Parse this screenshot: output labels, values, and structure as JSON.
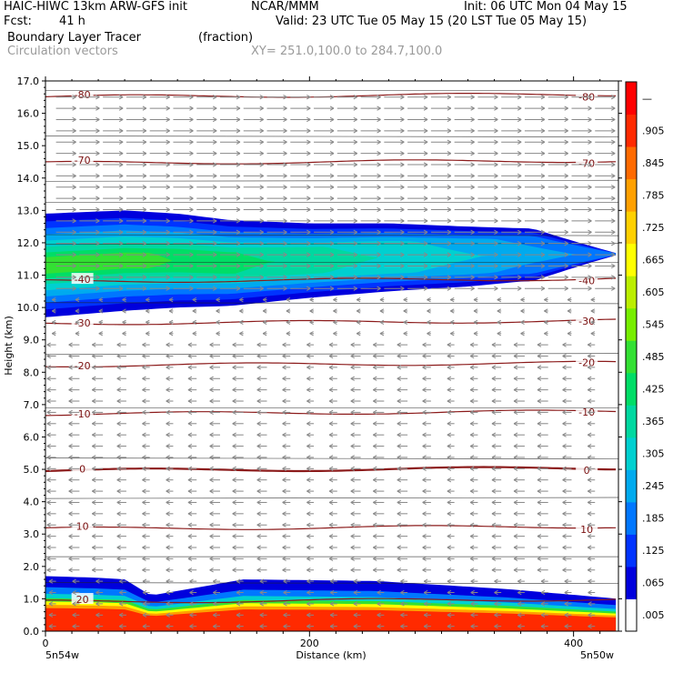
{
  "header": {
    "model": "HAIC-HIWC 13km ARW-GFS init",
    "org": "NCAR/MMM",
    "init": "Init: 06 UTC Mon 04 May 15",
    "fcst_label": "Fcst:",
    "fcst_value": "41 h",
    "valid": "Valid: 23 UTC Tue 05 May 15 (20 LST Tue 05 May 15)",
    "field": "Boundary Layer Tracer",
    "units": "(fraction)",
    "vectors": "Circulation vectors",
    "xy": "XY= 251.0,100.0 to 284.7,100.0"
  },
  "colorbar": {
    "labels": [
      ".005",
      ".065",
      ".125",
      ".185",
      ".245",
      ".305",
      ".365",
      ".425",
      ".485",
      ".545",
      ".605",
      ".665",
      ".725",
      ".785",
      ".845",
      ".905",
      "—"
    ],
    "colors": [
      "#ffffff",
      "#0000dd",
      "#0033ff",
      "#0077ff",
      "#00aaee",
      "#00d0d0",
      "#00d8a0",
      "#00dd66",
      "#33e033",
      "#77ee00",
      "#bbee00",
      "#ffff00",
      "#ffd000",
      "#ffa000",
      "#ff6a00",
      "#ff2a00",
      "#ff0000"
    ]
  },
  "chart_data": {
    "type": "contour-cross-section",
    "xlabel": "Distance (km)",
    "ylabel": "Height (km)",
    "xlim": [
      0,
      434
    ],
    "ylim": [
      0,
      17
    ],
    "xticks": [
      0,
      200,
      400
    ],
    "yticks": [
      0.0,
      1.0,
      2.0,
      3.0,
      4.0,
      5.0,
      6.0,
      7.0,
      8.0,
      9.0,
      10.0,
      11.0,
      12.0,
      13.0,
      14.0,
      15.0,
      16.0,
      17.0
    ],
    "x_endpoints": [
      "5n54w",
      "5n50w"
    ],
    "temperature_contours": [
      {
        "label": "-80",
        "height_km": 16.55
      },
      {
        "label": "-70",
        "height_km": 14.5
      },
      {
        "label": "-40",
        "height_km": 10.85
      },
      {
        "label": "-30",
        "height_km": 9.55
      },
      {
        "label": "-20",
        "height_km": 8.25
      },
      {
        "label": "-10",
        "height_km": 6.75
      },
      {
        "label": "0",
        "height_km": 5.0
      },
      {
        "label": "10",
        "height_km": 3.2
      },
      {
        "label": "20",
        "height_km": 0.95
      }
    ],
    "tracer_layers": [
      {
        "name": "upper",
        "x": [
          0,
          60,
          100,
          140,
          200,
          260,
          320,
          360,
          434
        ],
        "top": [
          12.9,
          13.0,
          12.9,
          12.7,
          12.6,
          12.6,
          12.5,
          12.45,
          12.4
        ],
        "bottom": [
          9.7,
          9.9,
          10.0,
          10.05,
          10.3,
          10.5,
          10.65,
          10.8,
          10.9
        ]
      },
      {
        "name": "boundary",
        "x": [
          0,
          40,
          60,
          80,
          150,
          250,
          350,
          434
        ],
        "top": [
          1.7,
          1.65,
          1.6,
          1.1,
          1.6,
          1.55,
          1.3,
          1.0
        ]
      }
    ]
  }
}
